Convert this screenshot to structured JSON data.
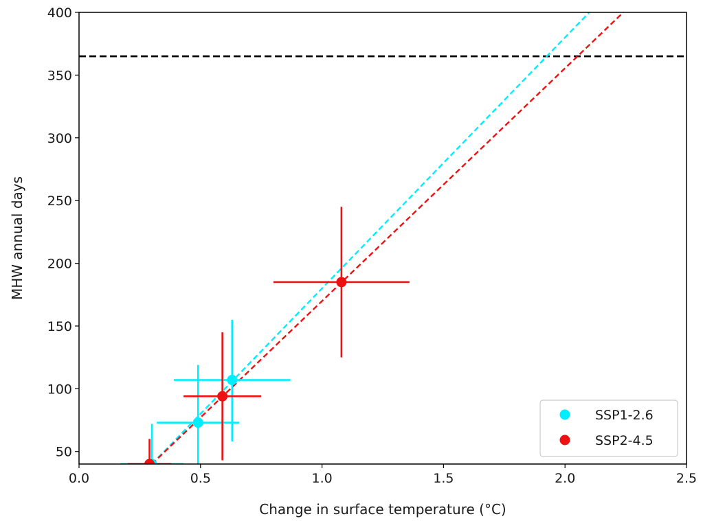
{
  "chart_data": {
    "type": "scatter",
    "xlabel": "Change in surface temperature (°C)",
    "ylabel": "MHW annual days",
    "xlim": [
      0.0,
      2.5
    ],
    "ylim": [
      40,
      400
    ],
    "x_ticks": [
      "0.0",
      "0.5",
      "1.0",
      "1.5",
      "2.0",
      "2.5"
    ],
    "x_tick_values": [
      0.0,
      0.5,
      1.0,
      1.5,
      2.0,
      2.5
    ],
    "y_ticks": [
      "50",
      "100",
      "150",
      "200",
      "250",
      "300",
      "350",
      "400"
    ],
    "y_tick_values": [
      50,
      100,
      150,
      200,
      250,
      300,
      350,
      400
    ],
    "grid": false,
    "legend_position": "lower-right",
    "reference_line": {
      "y": 365,
      "color": "#000000",
      "style": "dashed"
    },
    "series": [
      {
        "name": "SSP1-2.6",
        "color": "#00eeff",
        "points": [
          {
            "x": 0.3,
            "y": 40,
            "xerr": [
              0.17,
              0.43
            ],
            "yerr": [
              25,
              72
            ]
          },
          {
            "x": 0.49,
            "y": 73,
            "xerr": [
              0.32,
              0.66
            ],
            "yerr": [
              40,
              119
            ]
          },
          {
            "x": 0.63,
            "y": 107,
            "xerr": [
              0.39,
              0.87
            ],
            "yerr": [
              58,
              155
            ]
          }
        ],
        "fit": {
          "x1": 0.3,
          "y1": 40,
          "x2": 2.1,
          "y2": 400
        }
      },
      {
        "name": "SSP2-4.5",
        "color": "#ee1111",
        "points": [
          {
            "x": 0.29,
            "y": 40,
            "xerr": [
              0.2,
              0.38
            ],
            "yerr": [
              25,
              60
            ]
          },
          {
            "x": 0.59,
            "y": 94,
            "xerr": [
              0.43,
              0.75
            ],
            "yerr": [
              43,
              145
            ]
          },
          {
            "x": 1.08,
            "y": 185,
            "xerr": [
              0.8,
              1.36
            ],
            "yerr": [
              125,
              245
            ]
          }
        ],
        "fit": {
          "x1": 0.3,
          "y1": 40,
          "x2": 2.24,
          "y2": 400
        }
      }
    ]
  }
}
